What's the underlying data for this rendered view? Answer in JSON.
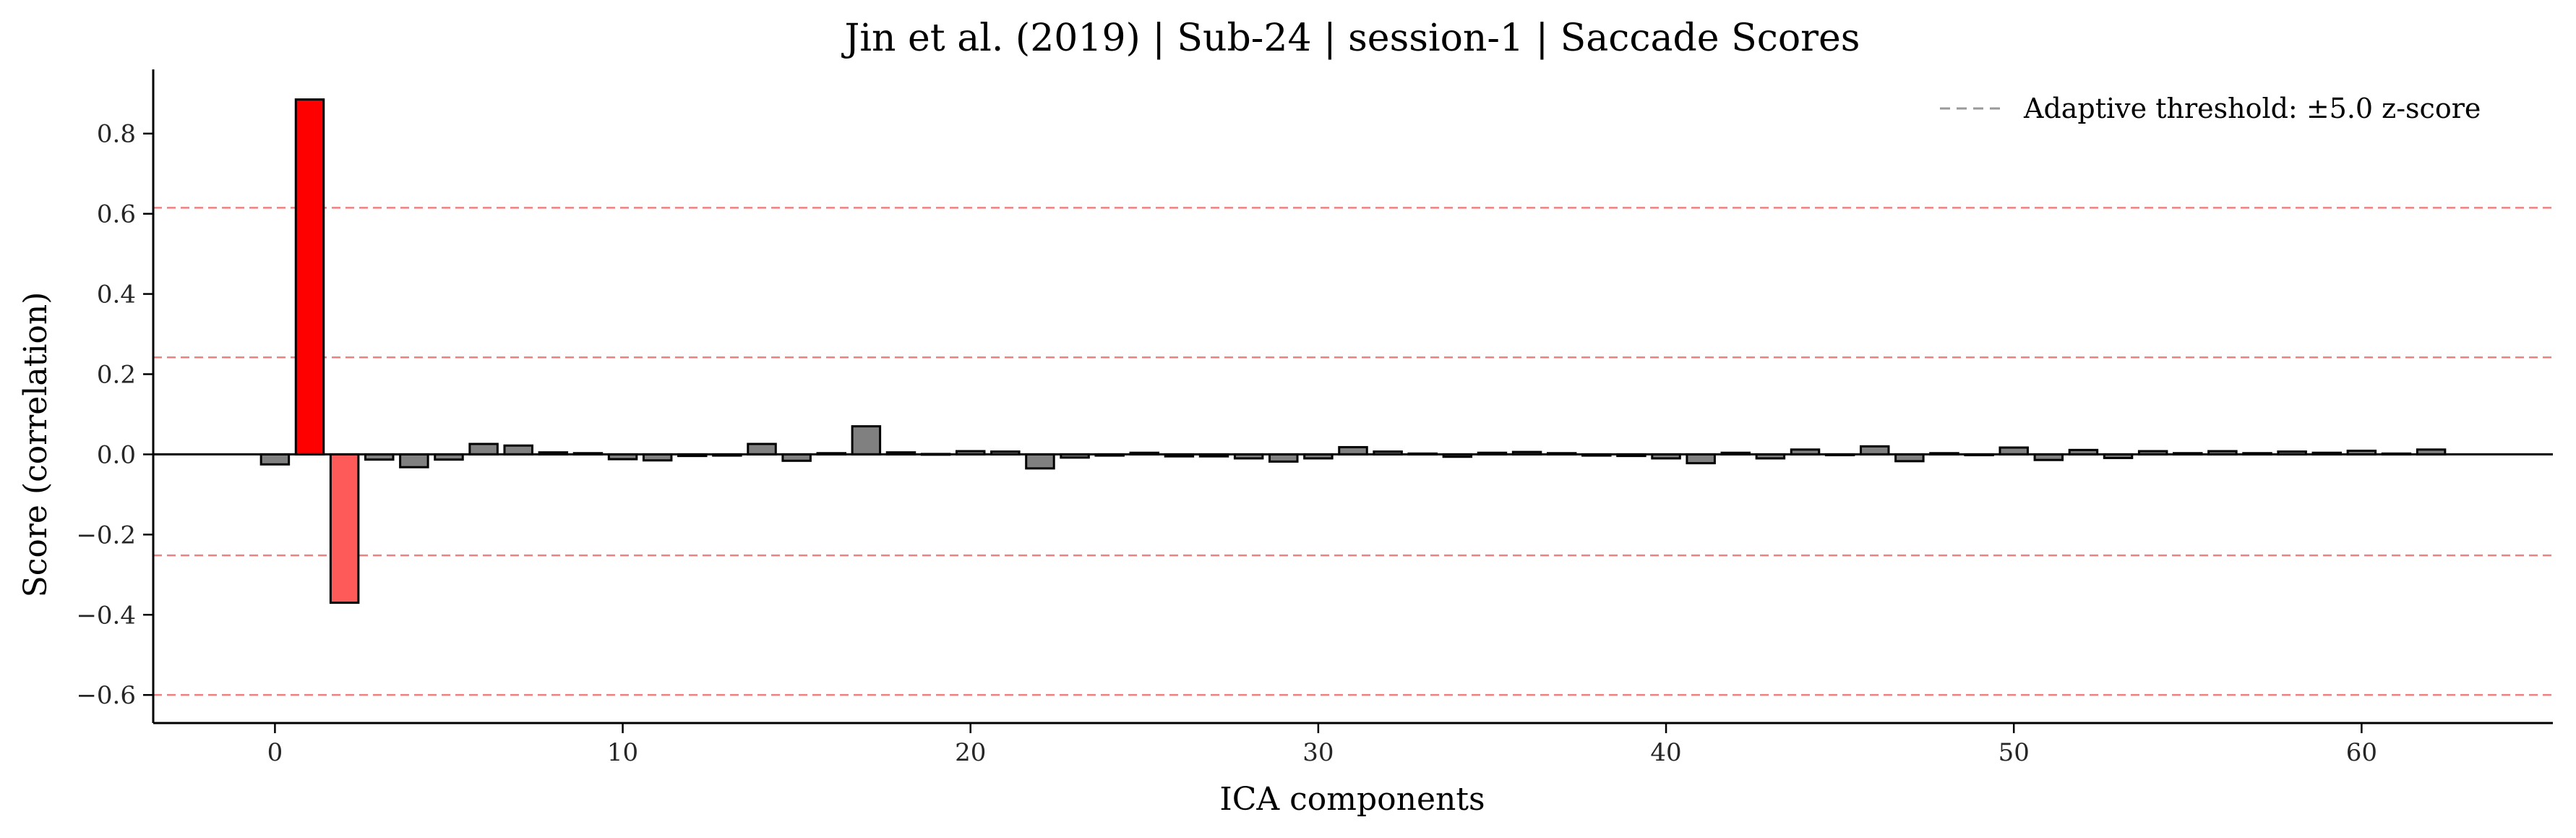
{
  "chart_data": {
    "type": "bar",
    "title": "Jin et al. (2019) | Sub-24 | session-1 | Saccade Scores",
    "xlabel": "ICA components",
    "ylabel": "Score (correlation)",
    "xlim": [
      -3.5,
      65.5
    ],
    "ylim": [
      -0.67,
      0.96
    ],
    "xticks": [
      0,
      10,
      20,
      30,
      40,
      50,
      60
    ],
    "yticks": [
      -0.6,
      -0.4,
      -0.2,
      0.0,
      0.2,
      0.4,
      0.6,
      0.8
    ],
    "ytick_labels": [
      "−0.6",
      "−0.4",
      "−0.2",
      "0.0",
      "0.2",
      "0.4",
      "0.6",
      "0.8"
    ],
    "grid": false,
    "legend_position": "top-right",
    "legend": [
      {
        "label": "Adaptive threshold: ±5.0 z-score",
        "style": "dashed",
        "color": "#999999"
      }
    ],
    "threshold_lines": [
      0.615,
      0.242,
      -0.252,
      -0.6
    ],
    "threshold_color": "#f08080",
    "bar_colors": {
      "default": "#808080",
      "flagged_strong": "#ff0000",
      "flagged_weak": "#ff5a5a"
    },
    "bars": [
      {
        "x": 0,
        "value": -0.025,
        "color": "#808080"
      },
      {
        "x": 1,
        "value": 0.885,
        "color": "#ff0000"
      },
      {
        "x": 2,
        "value": -0.37,
        "color": "#ff5a5a"
      },
      {
        "x": 3,
        "value": -0.013,
        "color": "#808080"
      },
      {
        "x": 4,
        "value": -0.032,
        "color": "#808080"
      },
      {
        "x": 5,
        "value": -0.013,
        "color": "#808080"
      },
      {
        "x": 6,
        "value": 0.026,
        "color": "#808080"
      },
      {
        "x": 7,
        "value": 0.022,
        "color": "#808080"
      },
      {
        "x": 8,
        "value": 0.005,
        "color": "#808080"
      },
      {
        "x": 9,
        "value": 0.003,
        "color": "#808080"
      },
      {
        "x": 10,
        "value": -0.012,
        "color": "#808080"
      },
      {
        "x": 11,
        "value": -0.015,
        "color": "#808080"
      },
      {
        "x": 12,
        "value": -0.004,
        "color": "#808080"
      },
      {
        "x": 13,
        "value": -0.003,
        "color": "#808080"
      },
      {
        "x": 14,
        "value": 0.026,
        "color": "#808080"
      },
      {
        "x": 15,
        "value": -0.016,
        "color": "#808080"
      },
      {
        "x": 16,
        "value": 0.003,
        "color": "#808080"
      },
      {
        "x": 17,
        "value": 0.07,
        "color": "#808080"
      },
      {
        "x": 18,
        "value": 0.005,
        "color": "#808080"
      },
      {
        "x": 19,
        "value": 0.001,
        "color": "#808080"
      },
      {
        "x": 20,
        "value": 0.008,
        "color": "#808080"
      },
      {
        "x": 21,
        "value": 0.007,
        "color": "#808080"
      },
      {
        "x": 22,
        "value": -0.035,
        "color": "#808080"
      },
      {
        "x": 23,
        "value": -0.008,
        "color": "#808080"
      },
      {
        "x": 24,
        "value": -0.003,
        "color": "#808080"
      },
      {
        "x": 25,
        "value": 0.004,
        "color": "#808080"
      },
      {
        "x": 26,
        "value": -0.005,
        "color": "#808080"
      },
      {
        "x": 27,
        "value": -0.005,
        "color": "#808080"
      },
      {
        "x": 28,
        "value": -0.01,
        "color": "#808080"
      },
      {
        "x": 29,
        "value": -0.018,
        "color": "#808080"
      },
      {
        "x": 30,
        "value": -0.01,
        "color": "#808080"
      },
      {
        "x": 31,
        "value": 0.018,
        "color": "#808080"
      },
      {
        "x": 32,
        "value": 0.007,
        "color": "#808080"
      },
      {
        "x": 33,
        "value": 0.002,
        "color": "#808080"
      },
      {
        "x": 34,
        "value": -0.006,
        "color": "#808080"
      },
      {
        "x": 35,
        "value": 0.004,
        "color": "#808080"
      },
      {
        "x": 36,
        "value": 0.006,
        "color": "#808080"
      },
      {
        "x": 37,
        "value": 0.003,
        "color": "#808080"
      },
      {
        "x": 38,
        "value": -0.003,
        "color": "#808080"
      },
      {
        "x": 39,
        "value": -0.004,
        "color": "#808080"
      },
      {
        "x": 40,
        "value": -0.01,
        "color": "#808080"
      },
      {
        "x": 41,
        "value": -0.022,
        "color": "#808080"
      },
      {
        "x": 42,
        "value": 0.004,
        "color": "#808080"
      },
      {
        "x": 43,
        "value": -0.01,
        "color": "#808080"
      },
      {
        "x": 44,
        "value": 0.012,
        "color": "#808080"
      },
      {
        "x": 45,
        "value": -0.002,
        "color": "#808080"
      },
      {
        "x": 46,
        "value": 0.02,
        "color": "#808080"
      },
      {
        "x": 47,
        "value": -0.017,
        "color": "#808080"
      },
      {
        "x": 48,
        "value": 0.003,
        "color": "#808080"
      },
      {
        "x": 49,
        "value": -0.002,
        "color": "#808080"
      },
      {
        "x": 50,
        "value": 0.017,
        "color": "#808080"
      },
      {
        "x": 51,
        "value": -0.014,
        "color": "#808080"
      },
      {
        "x": 52,
        "value": 0.011,
        "color": "#808080"
      },
      {
        "x": 53,
        "value": -0.009,
        "color": "#808080"
      },
      {
        "x": 54,
        "value": 0.008,
        "color": "#808080"
      },
      {
        "x": 55,
        "value": 0.003,
        "color": "#808080"
      },
      {
        "x": 56,
        "value": 0.008,
        "color": "#808080"
      },
      {
        "x": 57,
        "value": 0.003,
        "color": "#808080"
      },
      {
        "x": 58,
        "value": 0.007,
        "color": "#808080"
      },
      {
        "x": 59,
        "value": 0.004,
        "color": "#808080"
      },
      {
        "x": 60,
        "value": 0.009,
        "color": "#808080"
      },
      {
        "x": 61,
        "value": 0.002,
        "color": "#808080"
      },
      {
        "x": 62,
        "value": 0.012,
        "color": "#808080"
      }
    ]
  }
}
